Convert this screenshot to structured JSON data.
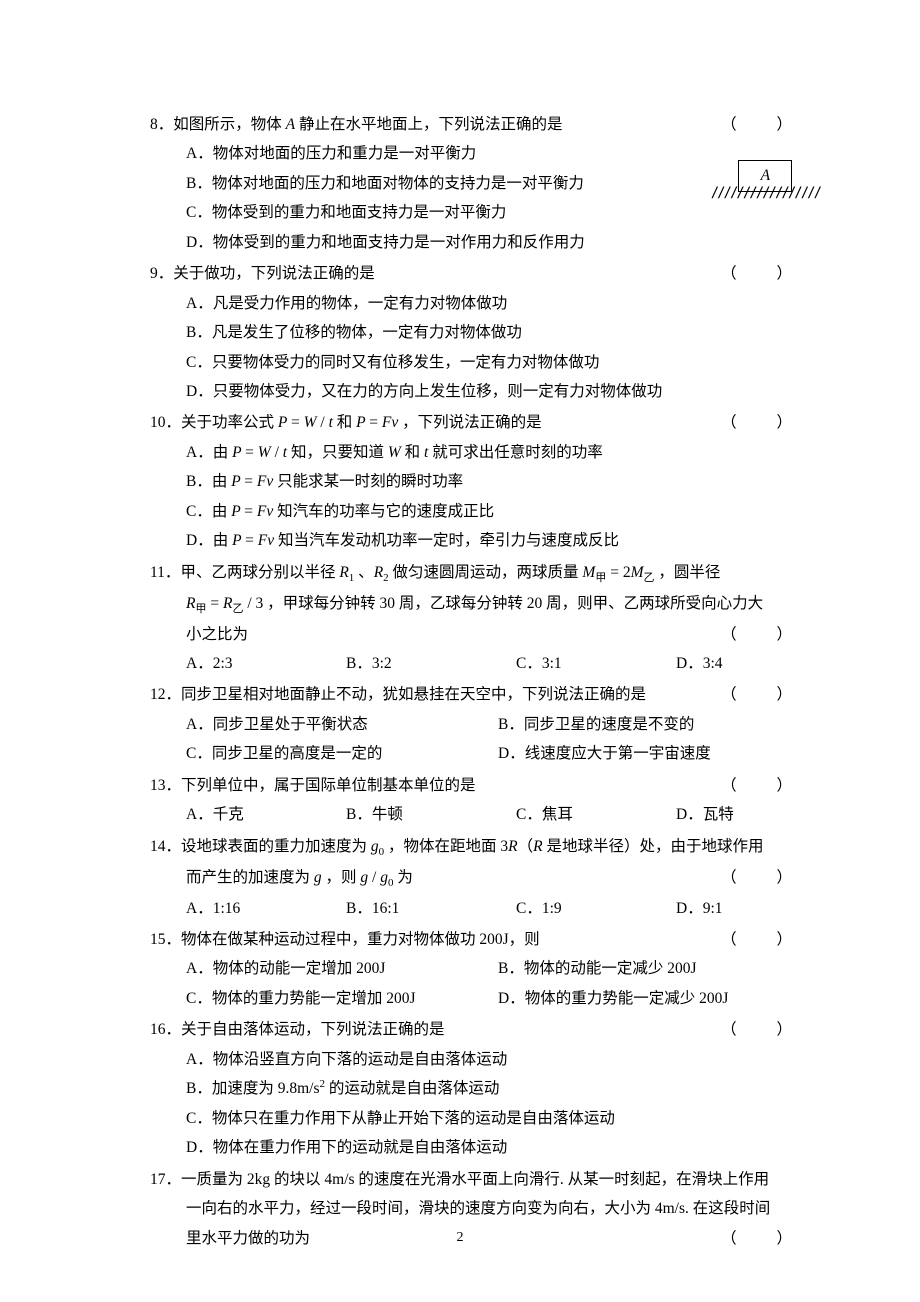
{
  "page_number": "2",
  "figure": {
    "label": "A",
    "ground": "/////////////////"
  },
  "paren": "（  ）",
  "questions": [
    {
      "num": "8．",
      "stem": "如图所示，物体 <span class='math'>A</span> 静止在水平地面上，下列说法正确的是",
      "paren_on_stem": true,
      "opts_block": [
        "A．物体对地面的压力和重力是一对平衡力",
        "B．物体对地面的压力和地面对物体的支持力是一对平衡力",
        "C．物体受到的重力和地面支持力是一对平衡力",
        "D．物体受到的重力和地面支持力是一对作用力和反作用力"
      ]
    },
    {
      "num": "9．",
      "stem": "关于做功，下列说法正确的是",
      "paren_on_stem": true,
      "opts_block": [
        "A．凡是受力作用的物体，一定有力对物体做功",
        "B．凡是发生了位移的物体，一定有力对物体做功",
        "C．只要物体受力的同时又有位移发生，一定有力对物体做功",
        "D．只要物体受力，又在力的方向上发生位移，则一定有力对物体做功"
      ]
    },
    {
      "num": "10．",
      "stem": "关于功率公式 <span class='math'>P <span class='rm'>=</span> W <span class='rm'>/</span> t</span> 和 <span class='math'>P <span class='rm'>=</span> Fv</span> ，下列说法正确的是",
      "paren_on_stem": true,
      "opts_block": [
        "A．由 <span class='math'>P <span class='rm'>=</span> W <span class='rm'>/</span> t</span> 知，只要知道 <span class='math'>W</span> 和 <span class='math'>t</span> 就可求出任意时刻的功率",
        "B．由 <span class='math'>P <span class='rm'>=</span> Fv</span> 只能求某一时刻的瞬时功率",
        "C．由 <span class='math'>P <span class='rm'>=</span> Fv</span> 知汽车的功率与它的速度成正比",
        "D．由 <span class='math'>P <span class='rm'>=</span> Fv</span> 知当汽车发动机功率一定时，牵引力与速度成反比"
      ]
    },
    {
      "num": "11．",
      "stem": "甲、乙两球分别以半径 <span class='math'>R<span class='sub'>1</span></span> 、<span class='math'>R<span class='sub'>2</span></span> 做匀速圆周运动，两球质量 <span class='math'>M</span><span class='sub'>甲</span> <span class='rm'>=</span> 2<span class='math'>M</span><span class='sub'>乙</span> ，圆半径",
      "stem_cont": [
        "<span class='math'>R</span><span class='sub'>甲</span> <span class='rm'>=</span> <span class='math'>R</span><span class='sub'>乙</span> <span class='rm'>/ 3</span> ，甲球每分钟转 30 周，乙球每分钟转 20 周，则甲、乙两球所受向心力大"
      ],
      "stem_last": "小之比为",
      "paren_on_last": true,
      "opts_row": {
        "A": "A．2:3",
        "B": "B．3:2",
        "C": "C．3:1",
        "D": "D．3:4"
      }
    },
    {
      "num": "12．",
      "stem": "同步卫星相对地面静止不动，犹如悬挂在天空中，下列说法正确的是",
      "paren_on_stem": true,
      "opts_row2": [
        {
          "L": "A．同步卫星处于平衡状态",
          "R": "B．同步卫星的速度是不变的"
        },
        {
          "L": "C．同步卫星的高度是一定的",
          "R": "D．线速度应大于第一宇宙速度"
        }
      ]
    },
    {
      "num": "13．",
      "stem": "下列单位中，属于国际单位制基本单位的是",
      "paren_on_stem": true,
      "opts_row": {
        "A": "A．千克",
        "B": "B．牛顿",
        "C": "C．焦耳",
        "D": "D．瓦特"
      }
    },
    {
      "num": "14．",
      "stem": "设地球表面的重力加速度为 <span class='math'>g<span class='sub'>0</span></span> ，物体在距地面 3<span class='math'>R</span>（<span class='math'>R</span> 是地球半径）处，由于地球作用",
      "stem_last": "而产生的加速度为 <span class='math'>g</span> ，则 <span class='math'>g <span class='rm'>/</span> g<span class='sub'>0</span></span> 为",
      "paren_on_last": true,
      "opts_row": {
        "A": "A．1:16",
        "B": "B．16:1",
        "C": "C．1:9",
        "D": "D．9:1"
      }
    },
    {
      "num": "15．",
      "stem": "物体在做某种运动过程中，重力对物体做功 200J，则",
      "paren_on_stem": true,
      "opts_row2": [
        {
          "L": "A．物体的动能一定增加 200J",
          "R": "B．物体的动能一定减少 200J"
        },
        {
          "L": "C．物体的重力势能一定增加 200J",
          "R": "D．物体的重力势能一定减少 200J"
        }
      ]
    },
    {
      "num": "16．",
      "stem": "关于自由落体运动，下列说法正确的是",
      "paren_on_stem": true,
      "opts_block": [
        "A．物体沿竖直方向下落的运动是自由落体运动",
        "B．加速度为 9.8m/s<span class='sup'>2</span> 的运动就是自由落体运动",
        "C．物体只在重力作用下从静止开始下落的运动是自由落体运动",
        "D．物体在重力作用下的运动就是自由落体运动"
      ]
    },
    {
      "num": "17．",
      "stem": "一质量为 2kg 的块以 4m/s 的速度在光滑水平面上向滑行. 从某一时刻起，在滑块上作用",
      "stem_cont": [
        "一向右的水平力，经过一段时间，滑块的速度方向变为向右，大小为 4m/s. 在这段时间"
      ],
      "stem_last": "里水平力做的功为",
      "paren_on_last": true
    }
  ]
}
